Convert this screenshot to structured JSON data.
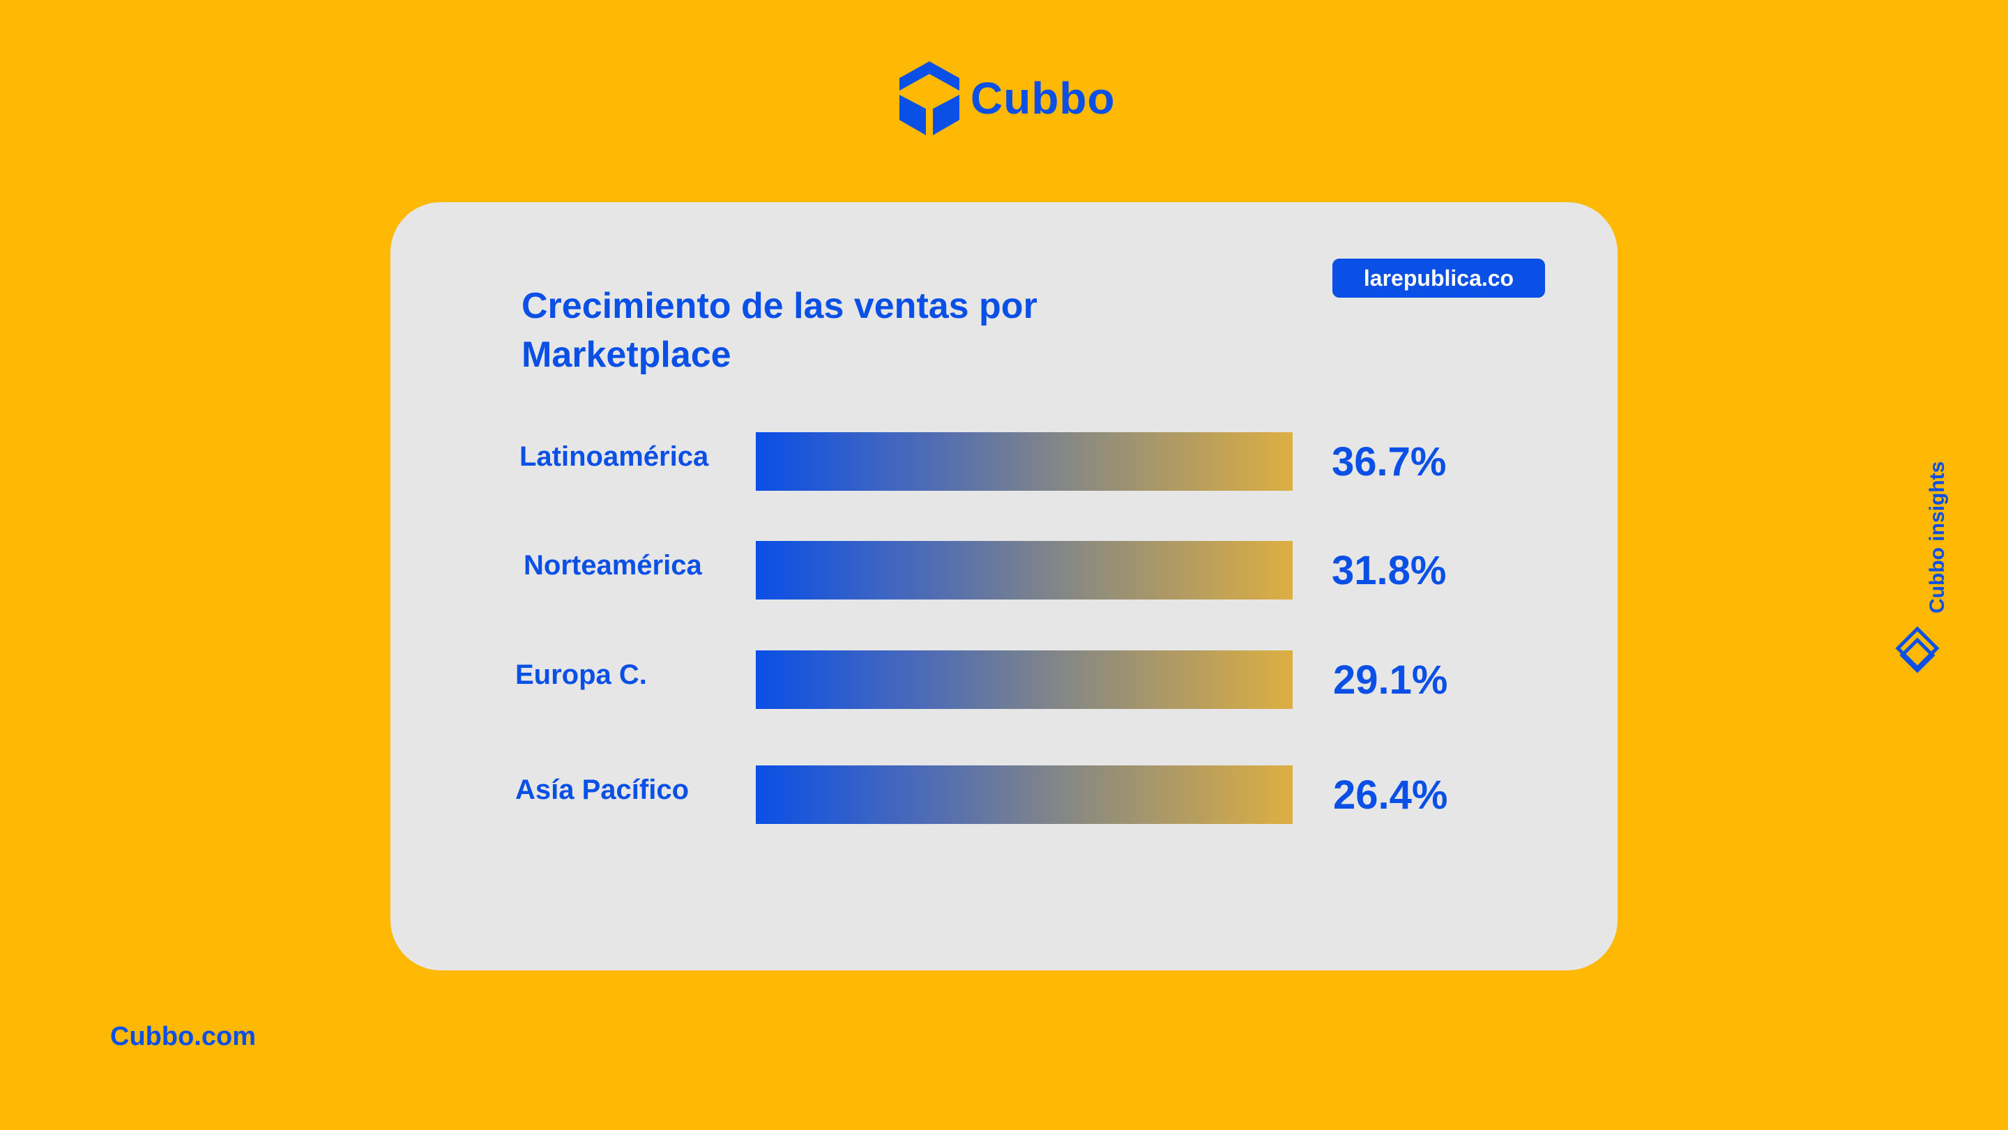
{
  "brand": {
    "name": "Cubbo",
    "logo_icon": "cube-logo-icon",
    "color": "#0A4FE6"
  },
  "card": {
    "source_badge": "larepublica.co"
  },
  "chart_data": {
    "type": "bar",
    "orientation": "horizontal",
    "title": "Crecimiento de las ventas por Marketplace",
    "categories": [
      "Latinoamérica",
      "Norteamérica",
      "Europa C.",
      "Asía Pacífico"
    ],
    "values": [
      36.7,
      31.8,
      29.1,
      26.4
    ],
    "value_labels": [
      "36.7%",
      "31.8%",
      "29.1%",
      "26.4%"
    ],
    "unit": "%",
    "bar_gradient": [
      "#0A4FE6",
      "#DDAF42"
    ],
    "grid": false,
    "legend": "none"
  },
  "footer": {
    "link": "Cubbo.com"
  },
  "side_tag": {
    "text": "Cubbo insights",
    "icon": "diamond-logo-icon"
  },
  "colors": {
    "background": "#FFB803",
    "card": "#E6E6E6",
    "accent": "#0A4FE6"
  }
}
